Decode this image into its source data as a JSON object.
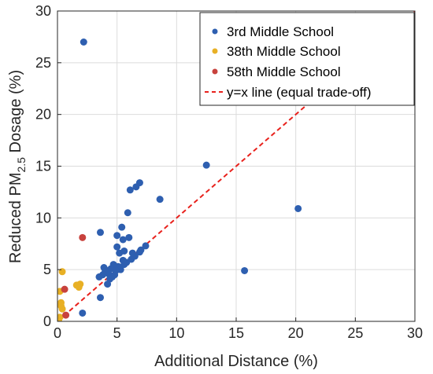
{
  "chart_data": {
    "type": "scatter",
    "title": "",
    "xlabel": "Additional Distance (%)",
    "ylabel_parts": {
      "before": "Reduced PM",
      "sub": "2.5",
      "after": " Dosage (%)"
    },
    "xlim": [
      0,
      30
    ],
    "ylim": [
      0,
      30
    ],
    "xticks": [
      0,
      5,
      10,
      15,
      20,
      25,
      30
    ],
    "yticks": [
      0,
      5,
      10,
      15,
      20,
      25,
      30
    ],
    "grid": true,
    "legend_position": "top-right",
    "series": [
      {
        "name": "3rd Middle School",
        "color": "#2e5fb0",
        "points": [
          [
            2.2,
            27.0
          ],
          [
            12.5,
            15.1
          ],
          [
            20.2,
            10.9
          ],
          [
            15.7,
            4.9
          ],
          [
            2.1,
            0.8
          ],
          [
            8.6,
            11.8
          ],
          [
            6.9,
            13.4
          ],
          [
            6.6,
            13.0
          ],
          [
            6.1,
            12.7
          ],
          [
            5.9,
            10.5
          ],
          [
            3.6,
            8.6
          ],
          [
            5.4,
            9.1
          ],
          [
            5.0,
            8.3
          ],
          [
            5.5,
            7.9
          ],
          [
            6.0,
            8.1
          ],
          [
            5.0,
            7.2
          ],
          [
            5.2,
            6.6
          ],
          [
            5.6,
            6.8
          ],
          [
            7.4,
            7.3
          ],
          [
            6.9,
            6.7
          ],
          [
            6.5,
            6.3
          ],
          [
            6.2,
            6.0
          ],
          [
            5.8,
            5.7
          ],
          [
            5.5,
            5.9
          ],
          [
            5.1,
            5.3
          ],
          [
            4.7,
            5.5
          ],
          [
            4.5,
            5.1
          ],
          [
            4.2,
            4.9
          ],
          [
            3.9,
            5.2
          ],
          [
            4.0,
            4.8
          ],
          [
            4.3,
            4.6
          ],
          [
            4.6,
            4.3
          ],
          [
            4.8,
            4.5
          ],
          [
            5.3,
            5.0
          ],
          [
            4.4,
            4.1
          ],
          [
            3.8,
            4.5
          ],
          [
            4.2,
            3.6
          ],
          [
            3.5,
            4.3
          ],
          [
            3.6,
            2.3
          ],
          [
            4.9,
            4.9
          ],
          [
            5.6,
            5.5
          ],
          [
            6.3,
            6.6
          ],
          [
            7.0,
            6.9
          ]
        ]
      },
      {
        "name": "38th Middle School",
        "color": "#e8b025",
        "points": [
          [
            0.4,
            4.8
          ],
          [
            0.2,
            2.9
          ],
          [
            0.3,
            1.8
          ],
          [
            0.3,
            1.5
          ],
          [
            0.4,
            1.2
          ],
          [
            0.2,
            0.4
          ],
          [
            0.1,
            0.2
          ],
          [
            0.0,
            0.0
          ],
          [
            0.1,
            0.0
          ],
          [
            1.6,
            3.5
          ],
          [
            1.9,
            3.6
          ],
          [
            1.8,
            3.3
          ]
        ]
      },
      {
        "name": "58th Middle School",
        "color": "#c8423d",
        "points": [
          [
            2.1,
            8.1
          ],
          [
            0.6,
            3.1
          ],
          [
            0.7,
            0.6
          ]
        ]
      }
    ],
    "reference_line": {
      "name": "y=x line (equal trade-off)",
      "color": "#e8211c",
      "from": [
        0,
        0
      ],
      "to": [
        30,
        30
      ]
    }
  }
}
